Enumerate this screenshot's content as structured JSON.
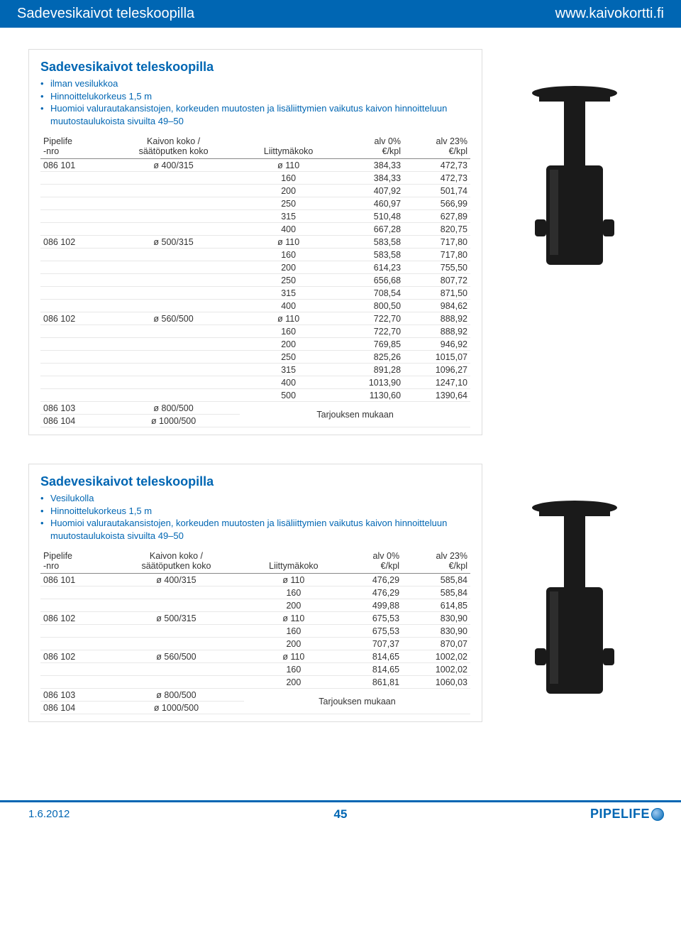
{
  "header": {
    "title": "Sadevesikaivot teleskoopilla",
    "url": "www.kaivokortti.fi"
  },
  "footer": {
    "date": "1.6.2012",
    "page": "45",
    "logo_text": "PIPELIFE"
  },
  "table_headers": {
    "col1a": "Pipelife",
    "col1b": "-nro",
    "col2a": "Kaivon koko /",
    "col2b": "säätöputken koko",
    "col3a": "Liittymäkoko",
    "col4a": "alv 0%",
    "col4b": "€/kpl",
    "col5a": "alv 23%",
    "col5b": "€/kpl"
  },
  "quote_text": "Tarjouksen mukaan",
  "card1": {
    "title": "Sadevesikaivot teleskoopilla",
    "bullets": [
      "ilman vesilukkoa",
      "Hinnoittelukorkeus 1,5 m",
      "Huomioi valurautakansistojen, korkeuden muutosten ja lisäliittymien vaikutus kaivon hinnoitteluun muutostaulukoista sivuilta 49–50"
    ],
    "rows": [
      [
        "086 101",
        "ø 400/315",
        "ø 110",
        "384,33",
        "472,73"
      ],
      [
        "",
        "",
        "160",
        "384,33",
        "472,73"
      ],
      [
        "",
        "",
        "200",
        "407,92",
        "501,74"
      ],
      [
        "",
        "",
        "250",
        "460,97",
        "566,99"
      ],
      [
        "",
        "",
        "315",
        "510,48",
        "627,89"
      ],
      [
        "",
        "",
        "400",
        "667,28",
        "820,75"
      ],
      [
        "086 102",
        "ø 500/315",
        "ø 110",
        "583,58",
        "717,80"
      ],
      [
        "",
        "",
        "160",
        "583,58",
        "717,80"
      ],
      [
        "",
        "",
        "200",
        "614,23",
        "755,50"
      ],
      [
        "",
        "",
        "250",
        "656,68",
        "807,72"
      ],
      [
        "",
        "",
        "315",
        "708,54",
        "871,50"
      ],
      [
        "",
        "",
        "400",
        "800,50",
        "984,62"
      ],
      [
        "086 102",
        "ø 560/500",
        "ø 110",
        "722,70",
        "888,92"
      ],
      [
        "",
        "",
        "160",
        "722,70",
        "888,92"
      ],
      [
        "",
        "",
        "200",
        "769,85",
        "946,92"
      ],
      [
        "",
        "",
        "250",
        "825,26",
        "1015,07"
      ],
      [
        "",
        "",
        "315",
        "891,28",
        "1096,27"
      ],
      [
        "",
        "",
        "400",
        "1013,90",
        "1247,10"
      ],
      [
        "",
        "",
        "500",
        "1130,60",
        "1390,64"
      ]
    ],
    "quote_rows": [
      [
        "086 103",
        "ø 800/500"
      ],
      [
        "086 104",
        "ø 1000/500"
      ]
    ]
  },
  "card2": {
    "title": "Sadevesikaivot teleskoopilla",
    "bullets": [
      "Vesilukolla",
      "Hinnoittelukorkeus 1,5 m",
      "Huomioi valurautakansistojen, korkeuden muutosten ja lisäliittymien vaikutus kaivon hinnoitteluun muutostaulukoista sivuilta 49–50"
    ],
    "rows": [
      [
        "086 101",
        "ø 400/315",
        "ø 110",
        "476,29",
        "585,84"
      ],
      [
        "",
        "",
        "160",
        "476,29",
        "585,84"
      ],
      [
        "",
        "",
        "200",
        "499,88",
        "614,85"
      ],
      [
        "086 102",
        "ø 500/315",
        "ø 110",
        "675,53",
        "830,90"
      ],
      [
        "",
        "",
        "160",
        "675,53",
        "830,90"
      ],
      [
        "",
        "",
        "200",
        "707,37",
        "870,07"
      ],
      [
        "086 102",
        "ø 560/500",
        "ø 110",
        "814,65",
        "1002,02"
      ],
      [
        "",
        "",
        "160",
        "814,65",
        "1002,02"
      ],
      [
        "",
        "",
        "200",
        "861,81",
        "1060,03"
      ]
    ],
    "quote_rows": [
      [
        "086 103",
        "ø 800/500"
      ],
      [
        "086 104",
        "ø 1000/500"
      ]
    ]
  },
  "product_svg": {
    "cap_color": "#1a1a1a",
    "body_color": "#1a1a1a",
    "base_color": "#1a1a1a",
    "highlight": "#3a3a3a"
  }
}
